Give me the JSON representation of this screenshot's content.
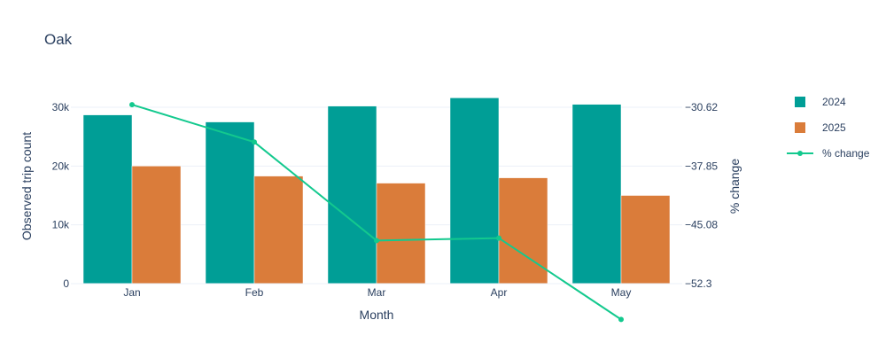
{
  "colors": {
    "series_2024": "#009e96",
    "series_2025": "#da7c3a",
    "pct_change": "#13c98e",
    "text": "#2a3f5f",
    "grid": "#ebf0f8"
  },
  "chart_data": {
    "type": "bar",
    "title": "Oak",
    "xlabel": "Month",
    "ylabel": "Observed trip count",
    "y2label": "% change",
    "categories": [
      "Jan",
      "Feb",
      "Mar",
      "Apr",
      "May"
    ],
    "ylim": [
      0,
      30000
    ],
    "yticks": [
      0,
      10000,
      20000,
      30000
    ],
    "ytick_labels": [
      "0",
      "10k",
      "20k",
      "30k"
    ],
    "y2lim": [
      -52.3,
      -30.62
    ],
    "y2ticks": [
      -52.3,
      -45.08,
      -37.85,
      -30.62
    ],
    "y2tick_labels": [
      "−52.3",
      "−45.08",
      "−37.85",
      "−30.62"
    ],
    "grid": true,
    "legend_position": "right",
    "series": [
      {
        "name": "2024",
        "type": "bar",
        "axis": "y",
        "values": [
          28700,
          27500,
          30200,
          31600,
          30500
        ]
      },
      {
        "name": "2025",
        "type": "bar",
        "axis": "y",
        "values": [
          20000,
          18300,
          17100,
          18000,
          15000
        ]
      },
      {
        "name": "% change",
        "type": "line",
        "axis": "y2",
        "values": [
          -30.3,
          -34.9,
          -47.0,
          -46.7,
          -56.7
        ]
      }
    ]
  }
}
